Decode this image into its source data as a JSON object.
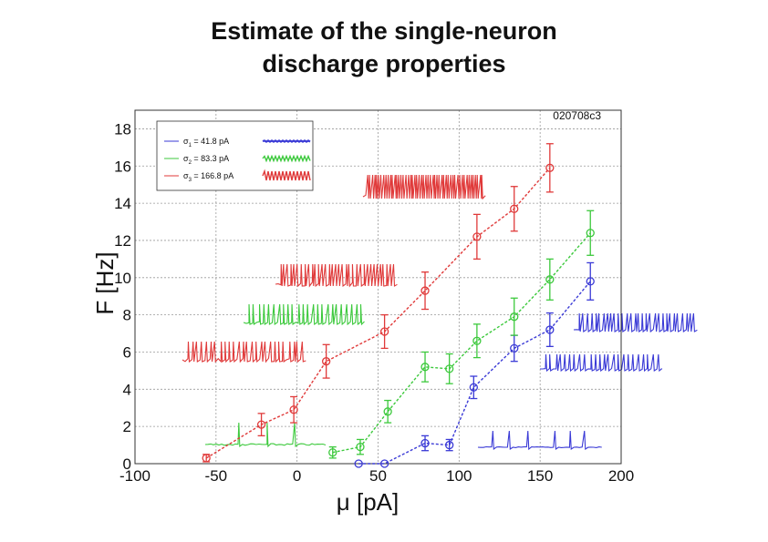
{
  "title": {
    "line1": "Estimate of the single-neuron",
    "line2": "discharge properties"
  },
  "chart_data": {
    "type": "line",
    "title": "Estimate of the single-neuron discharge properties",
    "xlabel": "μ [pA]",
    "ylabel": "F [Hz]",
    "xlim": [
      -100,
      200
    ],
    "ylim": [
      0,
      19
    ],
    "x_ticks": [
      -100,
      -50,
      0,
      50,
      100,
      150,
      200
    ],
    "y_ticks": [
      0,
      2,
      4,
      6,
      8,
      10,
      12,
      14,
      16,
      18
    ],
    "x_tick_labels": [
      "-100",
      "-50",
      "0",
      "50",
      "100",
      "150",
      "200"
    ],
    "y_tick_labels": [
      "0",
      "2",
      "4",
      "6",
      "8",
      "10",
      "12",
      "14",
      "16",
      "18"
    ],
    "grid": true,
    "legend_position": "top-left",
    "annotation": "020708c3",
    "series": [
      {
        "label_symbol": "σ",
        "label_sub": "1",
        "label_value": " = 41.8 pA",
        "color": "#3a3ad6",
        "x": [
          38,
          54,
          79,
          94,
          109,
          134,
          156,
          181
        ],
        "y": [
          0,
          0,
          1.1,
          1.0,
          4.1,
          6.2,
          7.2,
          9.8
        ],
        "err": [
          0,
          0,
          0.4,
          0.3,
          0.6,
          0.7,
          0.9,
          1.0
        ]
      },
      {
        "label_symbol": "σ",
        "label_sub": "2",
        "label_value": " = 83.3 pA",
        "color": "#3cc93c",
        "x": [
          22,
          39,
          56,
          79,
          94,
          111,
          134,
          156,
          181
        ],
        "y": [
          0.6,
          0.9,
          2.8,
          5.2,
          5.1,
          6.6,
          7.9,
          9.9,
          12.4
        ],
        "err": [
          0.3,
          0.4,
          0.6,
          0.8,
          0.8,
          0.9,
          1.0,
          1.1,
          1.2
        ]
      },
      {
        "label_symbol": "σ",
        "label_sub": "3",
        "label_value": " = 166.8 pA",
        "color": "#e03a3a",
        "x": [
          -56,
          -22,
          -2,
          18,
          54,
          79,
          111,
          134,
          156
        ],
        "y": [
          0.3,
          2.1,
          2.9,
          5.5,
          7.1,
          9.3,
          12.2,
          13.7,
          15.9
        ],
        "err": [
          0.2,
          0.6,
          0.7,
          0.9,
          0.9,
          1.0,
          1.2,
          1.2,
          1.3
        ]
      }
    ]
  }
}
